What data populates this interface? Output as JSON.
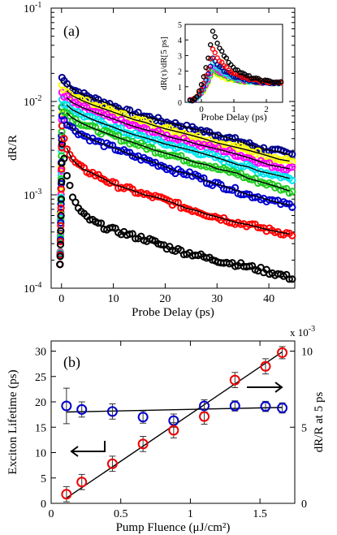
{
  "chart_data": [
    {
      "type": "scatter",
      "panel_label": "(a)",
      "xlabel": "Probe Delay (ps)",
      "ylabel": "dR/R",
      "xlim": [
        -2,
        45
      ],
      "ylim": [
        0.0001,
        0.1
      ],
      "yscale": "log",
      "xticks": [
        0,
        10,
        20,
        30,
        40
      ],
      "yticks": [
        {
          "base": "10",
          "exp": "-4"
        },
        {
          "base": "10",
          "exp": "-3"
        },
        {
          "base": "10",
          "exp": "-2"
        },
        {
          "base": "10",
          "exp": "-1"
        }
      ],
      "fit_color": "#000000",
      "series": [
        {
          "color": "#00008b",
          "peak": 0.018,
          "tail": 0.0036,
          "t_end": 0.00225,
          "x": [
            0,
            1,
            2,
            4,
            6,
            8,
            10,
            12,
            14,
            16,
            18,
            20,
            22,
            24,
            26,
            28,
            30,
            32,
            34,
            36,
            38,
            40,
            42,
            44
          ],
          "values": [
            0.018,
            0.0155,
            0.0138,
            0.012,
            0.0108,
            0.0099,
            0.009,
            0.008,
            0.0074,
            0.007,
            0.0065,
            0.006,
            0.0057,
            0.0053,
            0.005,
            0.0047,
            0.0044,
            0.0041,
            0.0038,
            0.0035,
            0.0032,
            0.003,
            0.0029,
            0.0027
          ]
        },
        {
          "color": "#ffff00",
          "peak": 0.015,
          "tail": 0.003,
          "t_end": 0.0019,
          "x": [
            0,
            1,
            2,
            4,
            6,
            8,
            10,
            12,
            14,
            16,
            18,
            20,
            22,
            24,
            26,
            28,
            30,
            32,
            34,
            36,
            38,
            40,
            42,
            44
          ],
          "values": [
            0.015,
            0.013,
            0.0116,
            0.0102,
            0.0092,
            0.0084,
            0.0077,
            0.007,
            0.0064,
            0.006,
            0.0055,
            0.0051,
            0.0048,
            0.0045,
            0.0042,
            0.0039,
            0.0036,
            0.0034,
            0.0032,
            0.003,
            0.0028,
            0.0026,
            0.0024,
            0.0023
          ]
        },
        {
          "color": "#ff00ff",
          "peak": 0.0125,
          "tail": 0.0026,
          "t_end": 0.0016,
          "x": [
            0,
            1,
            2,
            4,
            6,
            8,
            10,
            12,
            14,
            16,
            18,
            20,
            22,
            24,
            26,
            28,
            30,
            32,
            34,
            36,
            38,
            40,
            42,
            44
          ],
          "values": [
            0.0125,
            0.011,
            0.0098,
            0.0086,
            0.0078,
            0.0071,
            0.0065,
            0.0059,
            0.0054,
            0.005,
            0.0047,
            0.0043,
            0.004,
            0.0038,
            0.0035,
            0.0033,
            0.0031,
            0.0029,
            0.0027,
            0.0025,
            0.0023,
            0.0021,
            0.002,
            0.0019
          ]
        },
        {
          "color": "#00e5ee",
          "peak": 0.0105,
          "tail": 0.0022,
          "t_end": 0.0013,
          "x": [
            0,
            1,
            2,
            4,
            6,
            8,
            10,
            12,
            14,
            16,
            18,
            20,
            22,
            24,
            26,
            28,
            30,
            32,
            34,
            36,
            38,
            40,
            42,
            44
          ],
          "values": [
            0.0105,
            0.0092,
            0.0082,
            0.0072,
            0.0064,
            0.0058,
            0.0053,
            0.0048,
            0.0044,
            0.0041,
            0.0038,
            0.0035,
            0.0033,
            0.0031,
            0.0029,
            0.0027,
            0.0025,
            0.0023,
            0.0021,
            0.002,
            0.0018,
            0.0017,
            0.0016,
            0.0015
          ]
        },
        {
          "color": "#22cc22",
          "peak": 0.0088,
          "tail": 0.0018,
          "t_end": 0.00105,
          "x": [
            0,
            1,
            2,
            4,
            6,
            8,
            10,
            12,
            14,
            16,
            18,
            20,
            22,
            24,
            26,
            28,
            30,
            32,
            34,
            36,
            38,
            40,
            42,
            44
          ],
          "values": [
            0.0088,
            0.0076,
            0.0067,
            0.0058,
            0.0052,
            0.0047,
            0.0043,
            0.0039,
            0.0036,
            0.0033,
            0.003,
            0.0028,
            0.0026,
            0.0024,
            0.0022,
            0.0021,
            0.0019,
            0.0018,
            0.0017,
            0.0015,
            0.0014,
            0.0013,
            0.0012,
            0.0011
          ]
        },
        {
          "color": "#0000cd",
          "peak": 0.007,
          "tail": 0.0015,
          "t_end": 0.0008,
          "x": [
            0,
            1,
            2,
            4,
            6,
            8,
            10,
            12,
            14,
            16,
            18,
            20,
            22,
            24,
            26,
            28,
            30,
            32,
            34,
            36,
            38,
            40,
            42,
            44
          ],
          "values": [
            0.007,
            0.006,
            0.0052,
            0.0044,
            0.0039,
            0.0035,
            0.0032,
            0.0029,
            0.0026,
            0.0024,
            0.0022,
            0.002,
            0.0018,
            0.0017,
            0.0016,
            0.0014,
            0.0013,
            0.0012,
            0.0011,
            0.001,
            0.00095,
            0.00088,
            0.00082,
            0.00078
          ]
        },
        {
          "color": "#ff0000",
          "peak": 0.0055,
          "tail": 0.0011,
          "t_end": 0.00045,
          "x": [
            0,
            1,
            2,
            4,
            6,
            8,
            10,
            12,
            14,
            16,
            18,
            20,
            22,
            24,
            26,
            28,
            30,
            32,
            34,
            36,
            38,
            40,
            42,
            44
          ],
          "values": [
            0.0055,
            0.0032,
            0.0024,
            0.0019,
            0.0017,
            0.0015,
            0.0013,
            0.0012,
            0.0011,
            0.001,
            0.00095,
            0.00088,
            0.0008,
            0.00072,
            0.00068,
            0.00062,
            0.00058,
            0.00054,
            0.0005,
            0.00048,
            0.00045,
            0.00042,
            0.0004,
            0.00038
          ]
        },
        {
          "color": "#000000",
          "peak": 0.0035,
          "tail": 0.0006,
          "t_end": 0.00014,
          "x": [
            0,
            1,
            2,
            3,
            4,
            6,
            8,
            10,
            12,
            14,
            16,
            18,
            20,
            22,
            24,
            26,
            28,
            30,
            32,
            34,
            36,
            38,
            40,
            42,
            44
          ],
          "values": [
            0.0035,
            0.0016,
            0.001,
            0.00075,
            0.00062,
            0.00052,
            0.00046,
            0.00042,
            0.00039,
            0.00036,
            0.00034,
            0.00031,
            0.00028,
            0.00026,
            0.00024,
            0.00023,
            0.00021,
            0.0002,
            0.00019,
            0.00018,
            0.00017,
            0.00016,
            0.00015,
            0.00014,
            0.00013
          ]
        }
      ],
      "inset": {
        "type": "scatter",
        "xlabel": "Probe Delay (ps)",
        "ylabel": "dR(τ)/dR[5 ps]",
        "xlim": [
          -0.5,
          2.5
        ],
        "ylim": [
          0,
          5
        ],
        "xticks": [
          0,
          1,
          2
        ],
        "yticks": [
          0,
          1,
          2,
          3,
          4,
          5
        ],
        "series": [
          {
            "color": "#000000",
            "peak": 4.6
          },
          {
            "color": "#ff0000",
            "peak": 3.4
          },
          {
            "color": "#00008b",
            "peak": 2.8
          },
          {
            "color": "#00e5ee",
            "peak": 2.5
          },
          {
            "color": "#ff00ff",
            "peak": 2.3
          },
          {
            "color": "#22cc22",
            "peak": 2.1
          },
          {
            "color": "#ffff00",
            "peak": 1.9
          }
        ]
      }
    },
    {
      "type": "scatter",
      "panel_label": "(b)",
      "xlabel": "Pump Fluence (μJ/cm²)",
      "ylabel": "Exciton Lifetime (ps)",
      "y2label": "dR/R at 5 ps",
      "y2_multiplier": "x 10",
      "y2_multiplier_exp": "-3",
      "xlim": [
        0,
        1.75
      ],
      "ylim": [
        0,
        32
      ],
      "y2lim": [
        0,
        10.667
      ],
      "xticks": [
        0,
        0.5,
        1,
        1.5
      ],
      "yticks": [
        0,
        5,
        10,
        15,
        20,
        25,
        30
      ],
      "y2ticks": [
        0,
        5,
        10
      ],
      "series": [
        {
          "name": "lifetime",
          "axis": "left",
          "color": "#0000cc",
          "x": [
            0.11,
            0.22,
            0.44,
            0.66,
            0.88,
            1.1,
            1.32,
            1.54,
            1.66
          ],
          "values": [
            19.2,
            18.5,
            18.1,
            17.0,
            16.3,
            19.2,
            19.2,
            19.1,
            18.8
          ],
          "errors": [
            3.5,
            1.5,
            1.5,
            1.2,
            1.3,
            1.2,
            1.0,
            1.0,
            1.0
          ]
        },
        {
          "name": "dR/R at 5 ps",
          "axis": "right",
          "color": "#ee0000",
          "x": [
            0.11,
            0.22,
            0.44,
            0.66,
            0.88,
            1.1,
            1.32,
            1.54,
            1.66
          ],
          "values": [
            0.6,
            1.4,
            2.6,
            3.9,
            4.8,
            5.7,
            8.1,
            9.0,
            9.9
          ],
          "errors": [
            0.5,
            0.5,
            0.5,
            0.5,
            0.5,
            0.5,
            0.5,
            0.5,
            0.4
          ]
        }
      ],
      "fits": [
        {
          "axis": "left",
          "x": [
            0.11,
            1.66
          ],
          "values": [
            18.0,
            18.9
          ]
        },
        {
          "axis": "right",
          "x": [
            0.11,
            1.66
          ],
          "values": [
            0.35,
            9.95
          ]
        }
      ]
    }
  ]
}
